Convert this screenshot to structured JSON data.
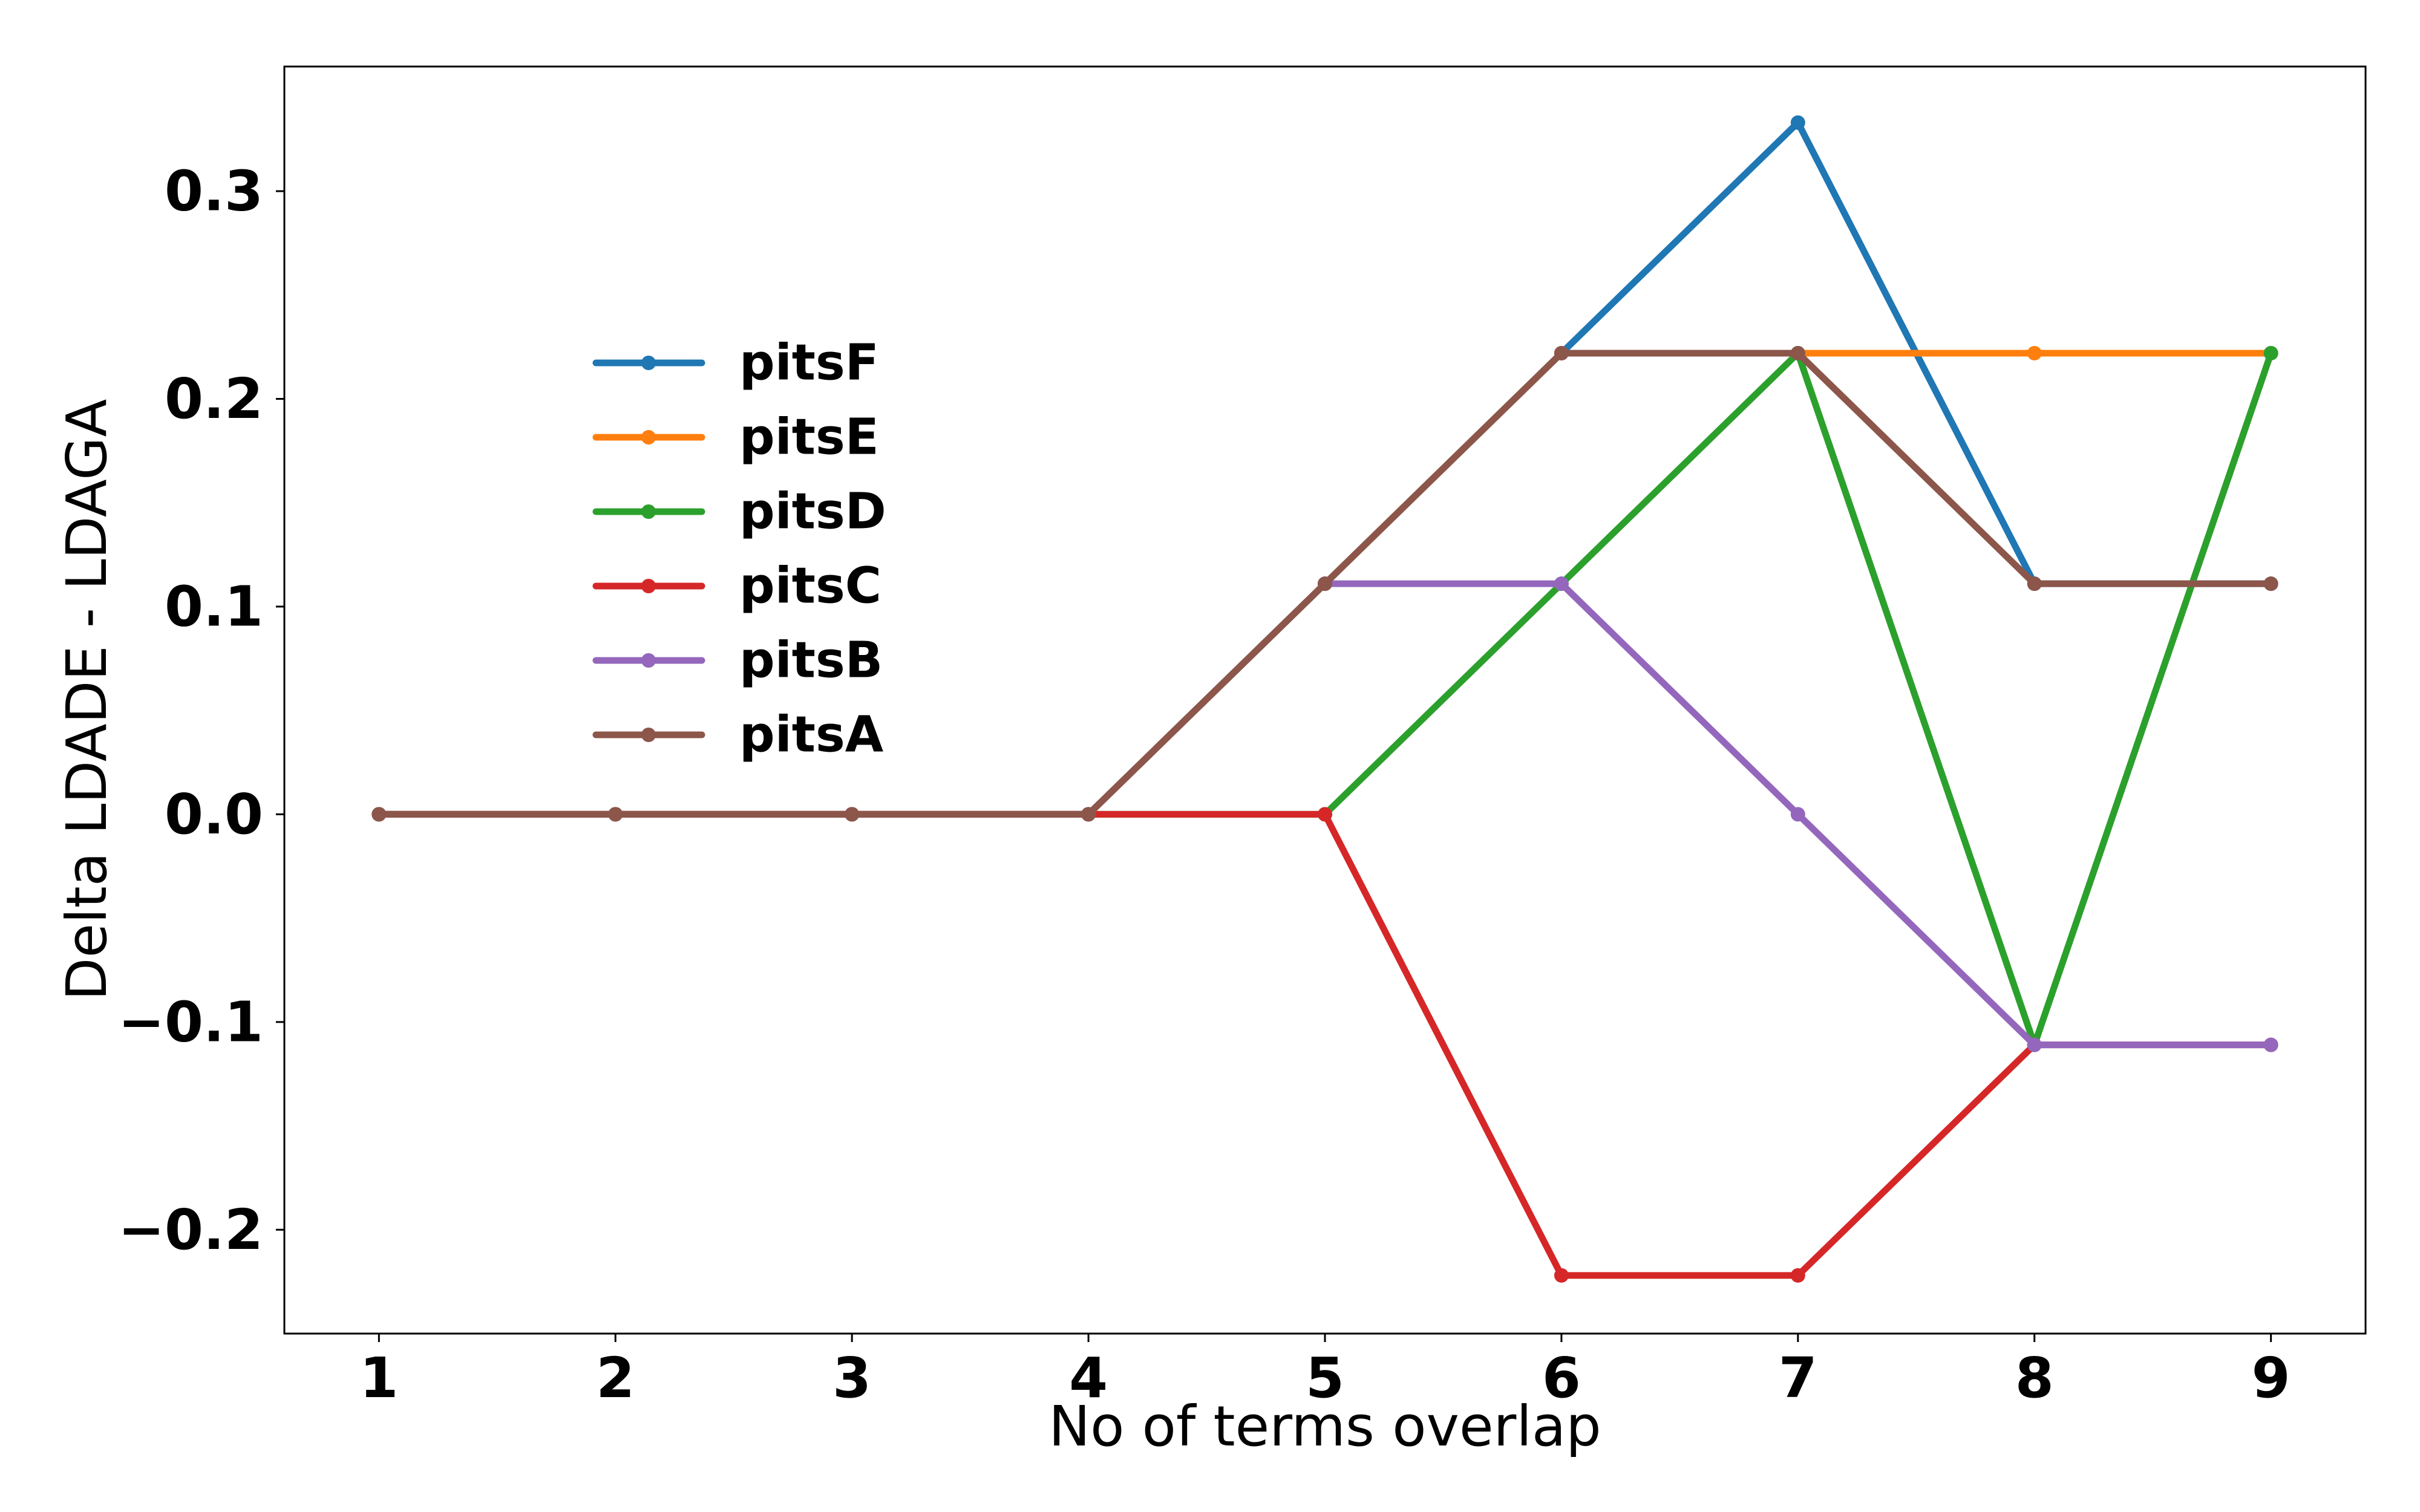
{
  "chart_data": {
    "type": "line",
    "title": "",
    "xlabel": "No of terms overlap",
    "ylabel": "Delta LDADE - LDAGA",
    "x": [
      1,
      2,
      3,
      4,
      5,
      6,
      7,
      8,
      9
    ],
    "xticks": [
      "1",
      "2",
      "3",
      "4",
      "5",
      "6",
      "7",
      "8",
      "9"
    ],
    "xlim": [
      0.6,
      9.4
    ],
    "yticks": [
      -0.2,
      -0.1,
      0.0,
      0.1,
      0.2,
      0.3
    ],
    "ytick_labels": [
      "−0.2",
      "−0.1",
      "0.0",
      "0.1",
      "0.2",
      "0.3"
    ],
    "ylim": [
      -0.25,
      0.36
    ],
    "grid": false,
    "legend_position": "center-left",
    "series": [
      {
        "name": "pitsF",
        "color": "#1f77b4",
        "values": [
          0,
          0,
          0,
          0,
          0.111,
          0.222,
          0.333,
          0.111,
          0.111
        ]
      },
      {
        "name": "pitsE",
        "color": "#ff7f0e",
        "values": [
          0,
          0,
          0,
          0,
          0.111,
          0.222,
          0.222,
          0.222,
          0.222
        ]
      },
      {
        "name": "pitsD",
        "color": "#2ca02c",
        "values": [
          0,
          0,
          0,
          0,
          0,
          0.111,
          0.222,
          -0.111,
          0.222
        ]
      },
      {
        "name": "pitsC",
        "color": "#d62728",
        "values": [
          0,
          0,
          0,
          0,
          0,
          -0.222,
          -0.222,
          -0.111,
          -0.111
        ]
      },
      {
        "name": "pitsB",
        "color": "#9467bd",
        "values": [
          0,
          0,
          0,
          0,
          0.111,
          0.111,
          0,
          -0.111,
          -0.111
        ]
      },
      {
        "name": "pitsA",
        "color": "#8c564b",
        "values": [
          0,
          0,
          0,
          0,
          0.111,
          0.222,
          0.222,
          0.111,
          0.111
        ]
      }
    ]
  }
}
